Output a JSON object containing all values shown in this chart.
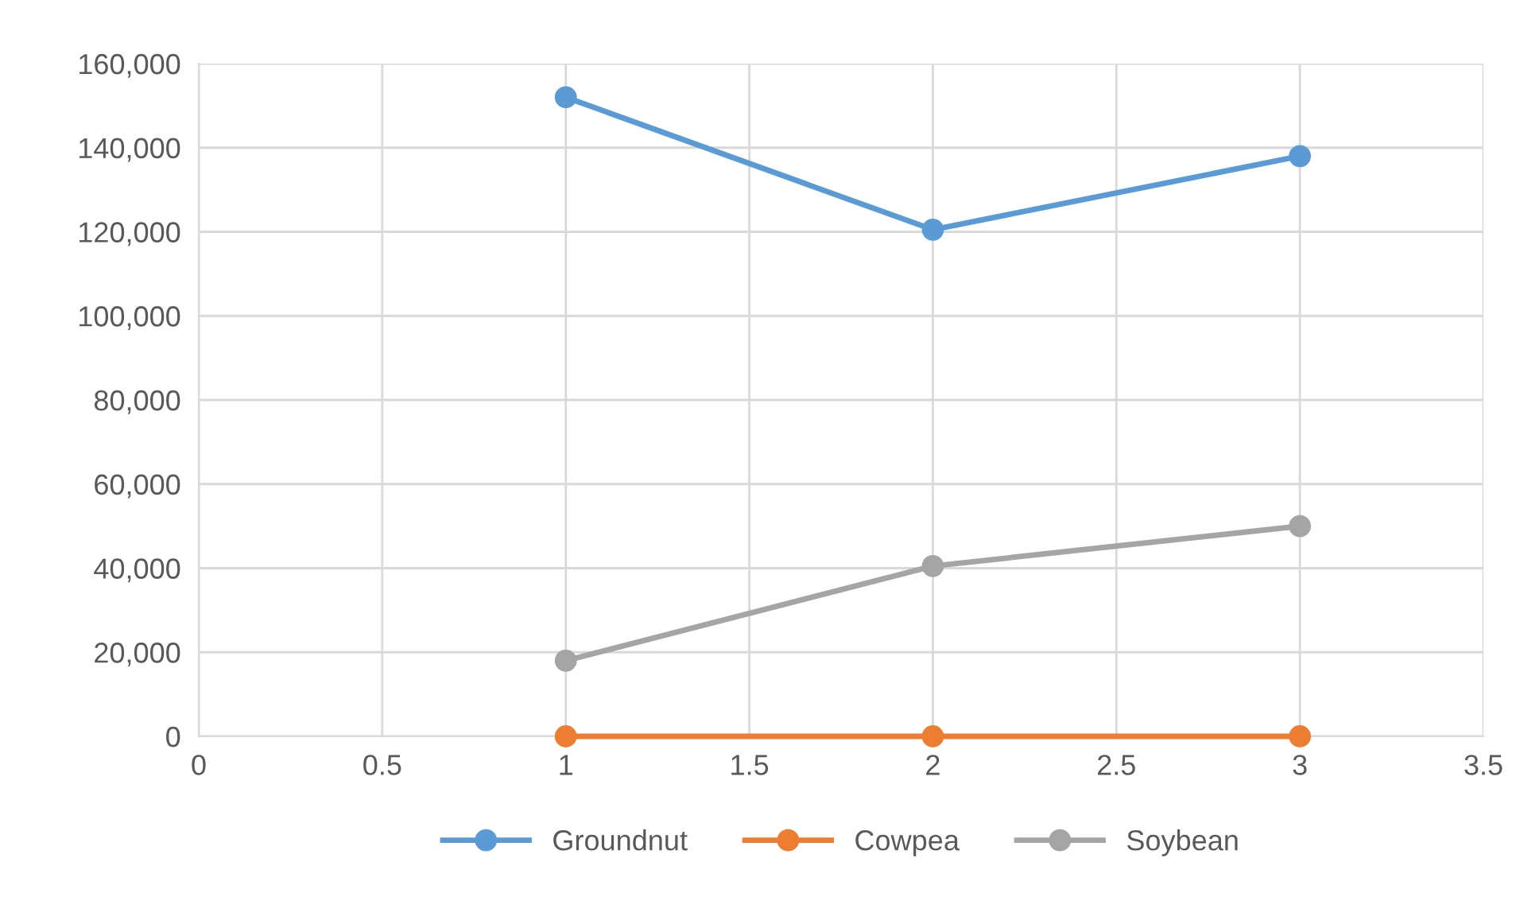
{
  "chart_data": {
    "type": "line",
    "x": [
      1,
      2,
      3
    ],
    "series": [
      {
        "name": "Groundnut",
        "color": "#5b9bd5",
        "values": [
          152000,
          120500,
          138000
        ]
      },
      {
        "name": "Cowpea",
        "color": "#ed7d31",
        "values": [
          0,
          0,
          0
        ]
      },
      {
        "name": "Soybean",
        "color": "#a5a5a5",
        "values": [
          18000,
          40500,
          50000
        ]
      }
    ],
    "xlim": [
      0,
      3.5
    ],
    "xticks": [
      0,
      0.5,
      1,
      1.5,
      2,
      2.5,
      3,
      3.5
    ],
    "ylim": [
      0,
      160000
    ],
    "yticks": [
      {
        "value": 0,
        "label": "0"
      },
      {
        "value": 20000,
        "label": "20,000"
      },
      {
        "value": 40000,
        "label": "40,000"
      },
      {
        "value": 60000,
        "label": "60,000"
      },
      {
        "value": 80000,
        "label": "80,000"
      },
      {
        "value": 100000,
        "label": "100,000"
      },
      {
        "value": 120000,
        "label": "120,000"
      },
      {
        "value": 140000,
        "label": "140,000"
      },
      {
        "value": 160000,
        "label": "160,000"
      }
    ],
    "grid": true,
    "legend": "bottom",
    "marker": "circle",
    "line_style": "solid"
  }
}
